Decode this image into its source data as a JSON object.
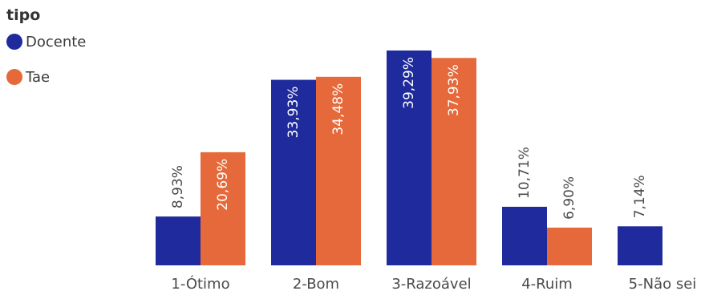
{
  "legend": {
    "title": "tipo",
    "items": [
      {
        "label": "Docente",
        "color": "#1f2a9c"
      },
      {
        "label": "Tae",
        "color": "#e5693a"
      }
    ]
  },
  "chart_data": {
    "type": "bar",
    "title": "",
    "xlabel": "",
    "ylabel": "",
    "categories": [
      "1-Ótimo",
      "2-Bom",
      "3-Razoável",
      "4-Ruim",
      "5-Não sei"
    ],
    "series": [
      {
        "name": "Docente",
        "color": "#1f2a9c",
        "values": [
          8.93,
          33.93,
          39.29,
          10.71,
          7.14
        ],
        "labels": [
          "8,93%",
          "33,93%",
          "39,29%",
          "10,71%",
          "7,14%"
        ]
      },
      {
        "name": "Tae",
        "color": "#e5693a",
        "values": [
          20.69,
          34.48,
          37.93,
          6.9,
          null
        ],
        "labels": [
          "20,69%",
          "34,48%",
          "37,93%",
          "6,90%",
          ""
        ]
      }
    ],
    "ylim": [
      0,
      39.29
    ],
    "grid": false,
    "legend_position": "top-left"
  }
}
